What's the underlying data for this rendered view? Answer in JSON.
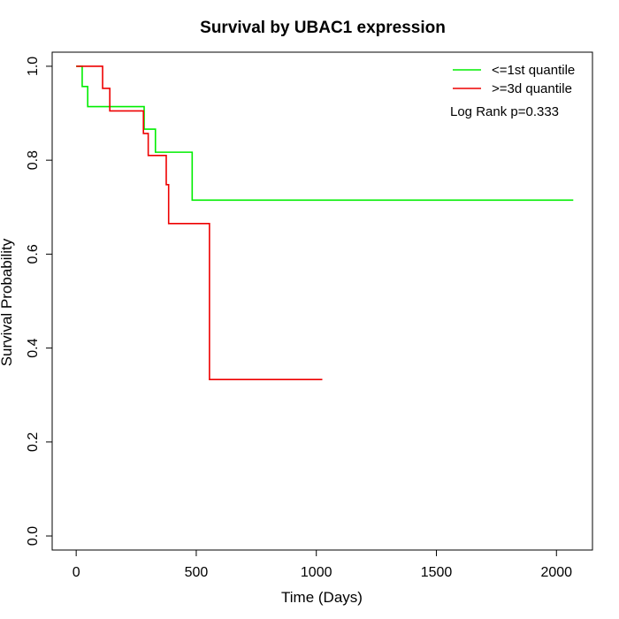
{
  "chart_data": {
    "type": "line",
    "title": "Survival by UBAC1 expression",
    "xlabel": "Time (Days)",
    "ylabel": "Survival Probability",
    "xlim": [
      -100,
      2150
    ],
    "ylim": [
      -0.03,
      1.03
    ],
    "x_ticks": [
      0,
      500,
      1000,
      1500,
      2000
    ],
    "y_ticks": [
      0.0,
      0.2,
      0.4,
      0.6,
      0.8,
      1.0
    ],
    "x_tick_labels": [
      "0",
      "500",
      "1000",
      "1500",
      "2000"
    ],
    "y_tick_labels": [
      "0.0",
      "0.2",
      "0.4",
      "0.6",
      "0.8",
      "1.0"
    ],
    "grid": false,
    "legend_position": "top-right",
    "annotation": "Log Rank p=0.333",
    "series": [
      {
        "name": "<=1st quantile",
        "color": "#00ee00",
        "step": [
          [
            0,
            1.0
          ],
          [
            25,
            1.0
          ],
          [
            25,
            0.957
          ],
          [
            48,
            0.957
          ],
          [
            48,
            0.914
          ],
          [
            283,
            0.914
          ],
          [
            283,
            0.866
          ],
          [
            330,
            0.866
          ],
          [
            330,
            0.817
          ],
          [
            483,
            0.817
          ],
          [
            483,
            0.715
          ],
          [
            2070,
            0.715
          ]
        ]
      },
      {
        "name": ">=3d quantile",
        "color": "#ee0000",
        "step": [
          [
            0,
            1.0
          ],
          [
            110,
            1.0
          ],
          [
            110,
            0.953
          ],
          [
            140,
            0.953
          ],
          [
            140,
            0.905
          ],
          [
            280,
            0.905
          ],
          [
            280,
            0.857
          ],
          [
            300,
            0.857
          ],
          [
            300,
            0.81
          ],
          [
            375,
            0.81
          ],
          [
            375,
            0.748
          ],
          [
            385,
            0.748
          ],
          [
            385,
            0.665
          ],
          [
            555,
            0.665
          ],
          [
            555,
            0.333
          ],
          [
            1025,
            0.333
          ]
        ]
      }
    ]
  }
}
